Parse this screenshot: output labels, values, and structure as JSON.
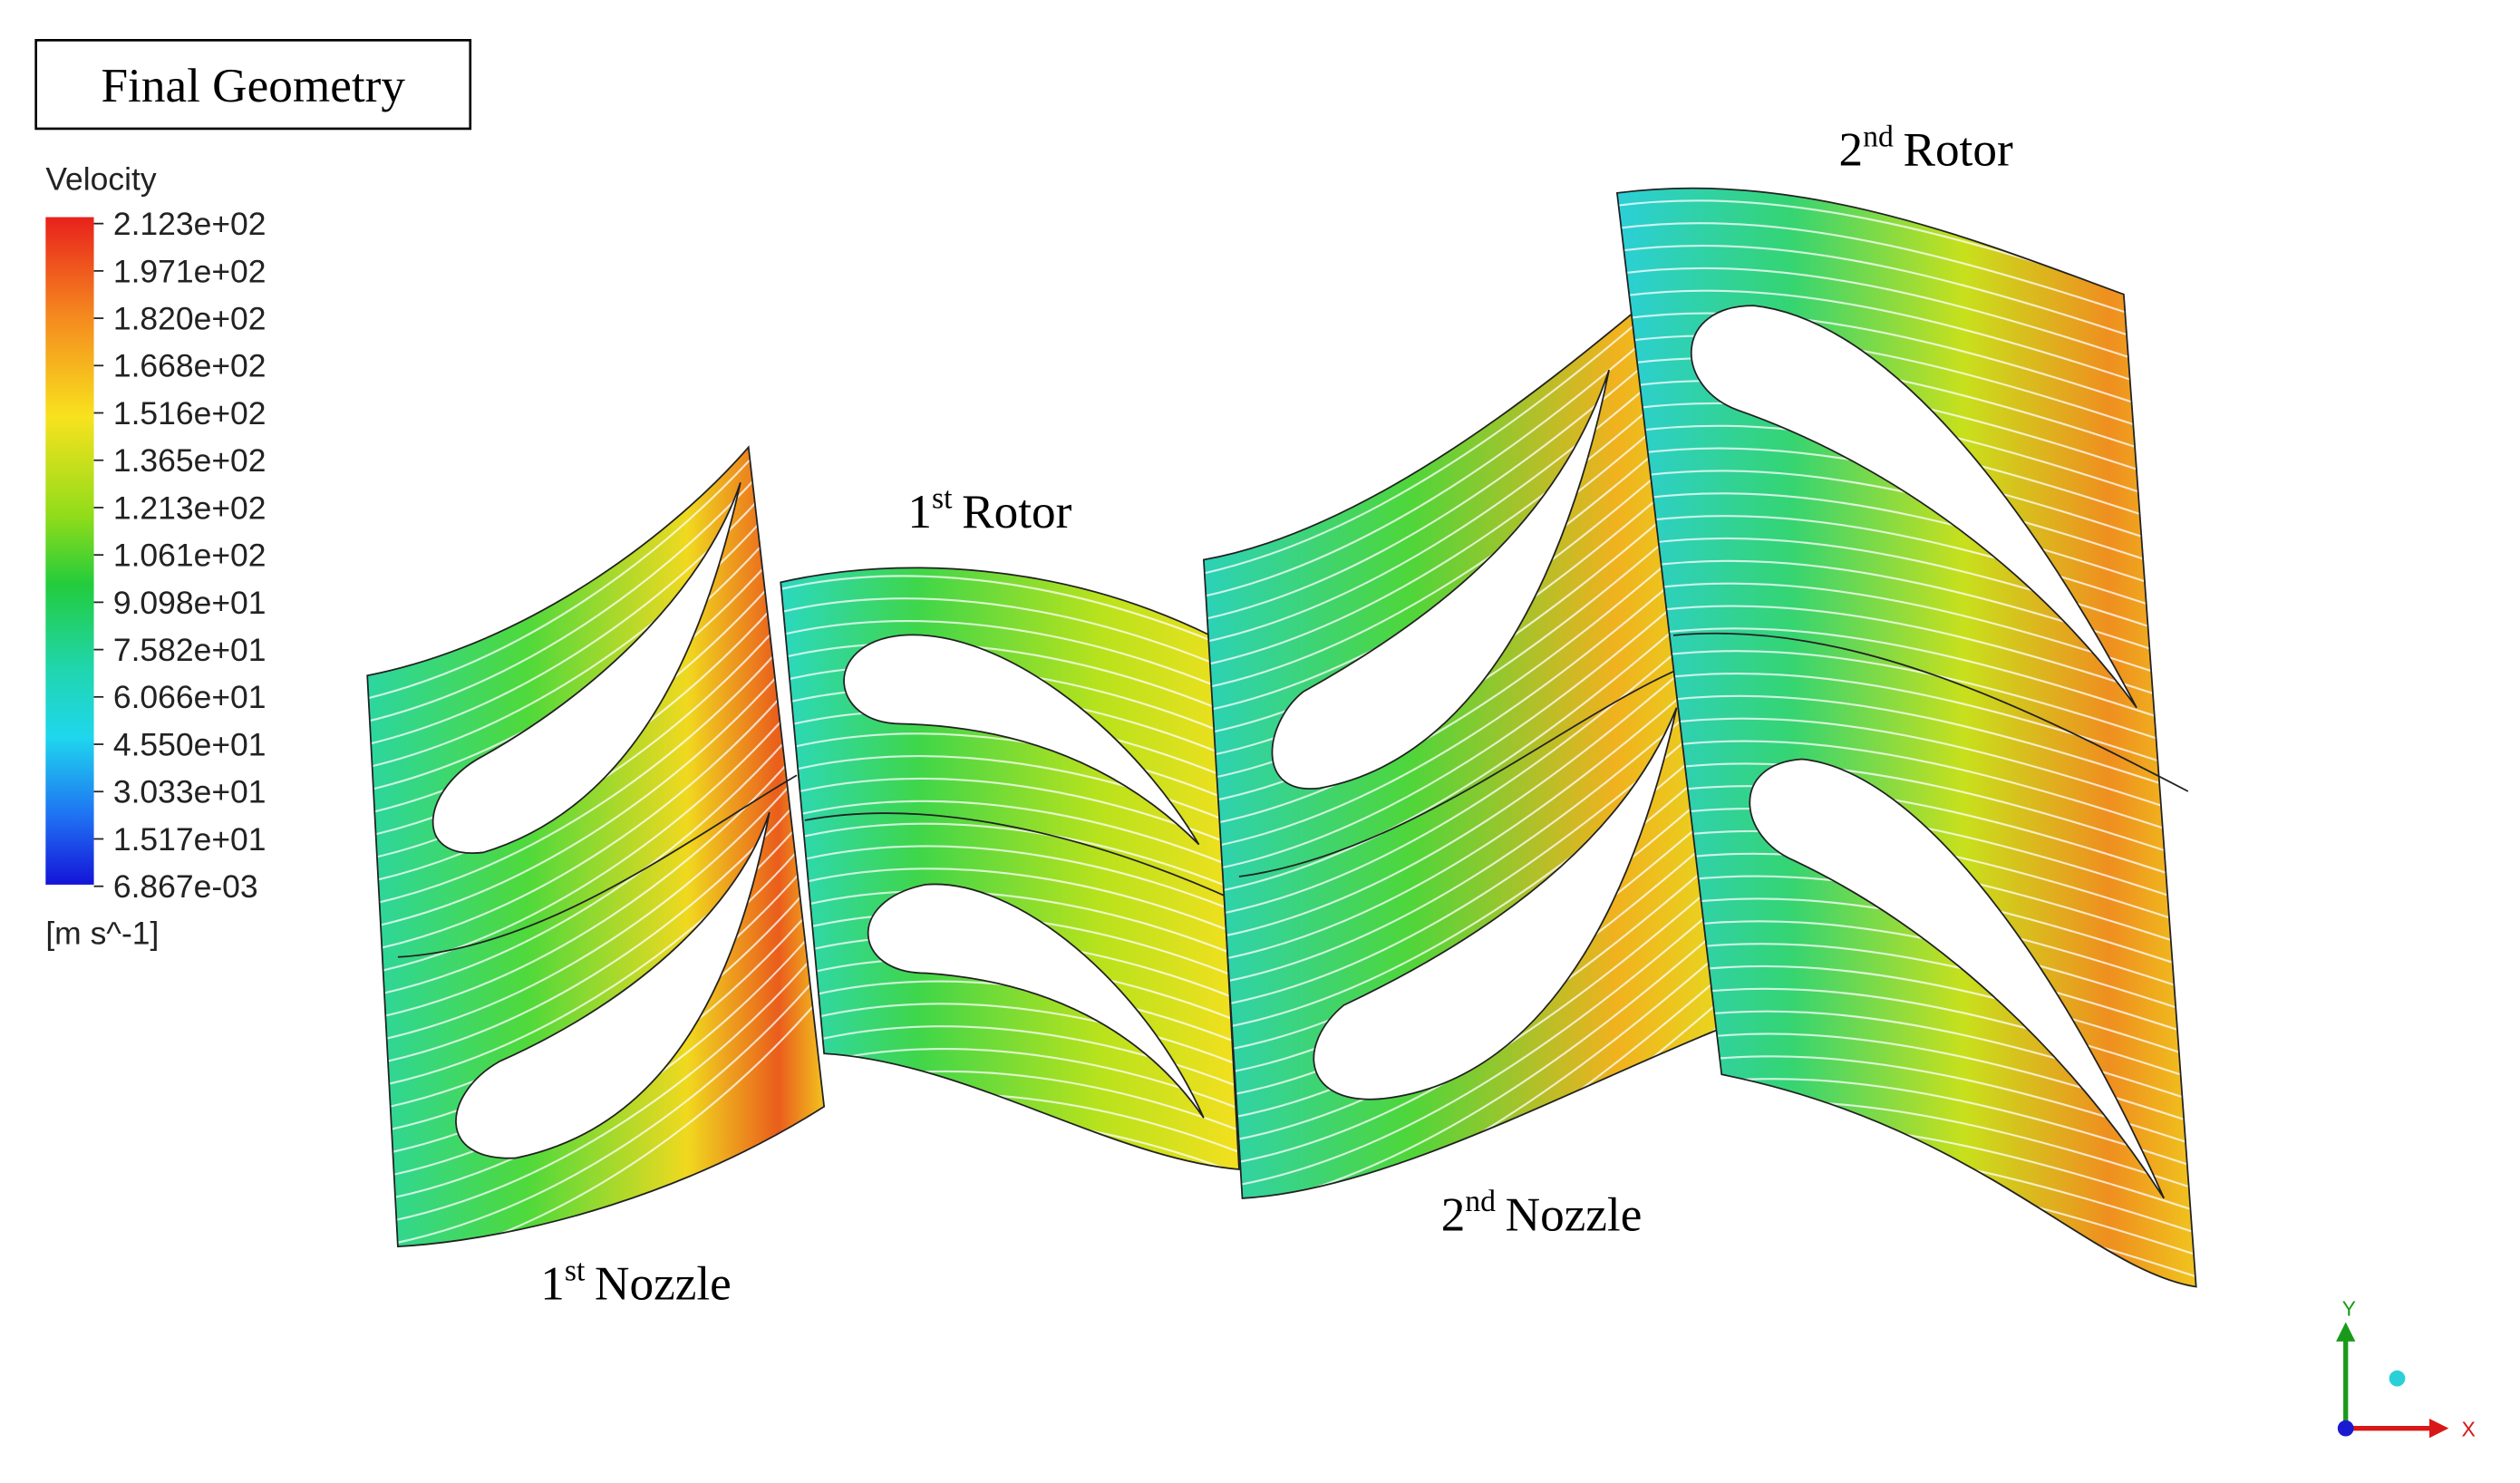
{
  "title": "Final Geometry",
  "legend": {
    "title": "Velocity",
    "ticks": [
      "2.123e+02",
      "1.971e+02",
      "1.820e+02",
      "1.668e+02",
      "1.516e+02",
      "1.365e+02",
      "1.213e+02",
      "1.061e+02",
      "9.098e+01",
      "7.582e+01",
      "6.066e+01",
      "4.550e+01",
      "3.033e+01",
      "1.517e+01",
      "6.867e-03"
    ],
    "unit": "[m s^-1]"
  },
  "stages": [
    {
      "number": "1",
      "suffix": "st",
      "name": "Nozzle"
    },
    {
      "number": "1",
      "suffix": "st",
      "name": "Rotor"
    },
    {
      "number": "2",
      "suffix": "nd",
      "name": "Nozzle"
    },
    {
      "number": "2",
      "suffix": "nd",
      "name": "Rotor"
    }
  ],
  "axes": {
    "x": "X",
    "y": "Y"
  }
}
